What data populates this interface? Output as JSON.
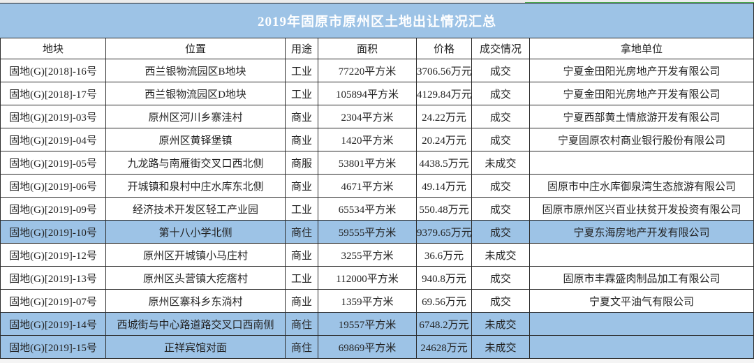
{
  "title": "2019年固原市原州区土地出让情况汇总",
  "headers": [
    "地块",
    "位置",
    "用途",
    "面积",
    "价格",
    "成交情况",
    "拿地单位"
  ],
  "highlight_color": "#9dc3e6",
  "rows": [
    {
      "parcel": "固地(G)[2018]-16号",
      "location": "西兰银物流园区B地块",
      "use": "工业",
      "area": "77220平方米",
      "price": "3706.56万元",
      "status": "成交",
      "buyer": "宁夏金田阳光房地产开发有限公司",
      "highlighted": false
    },
    {
      "parcel": "固地(G)[2018]-17号",
      "location": "西兰银物流园区D地块",
      "use": "工业",
      "area": "105894平方米",
      "price": "4129.84万元",
      "status": "成交",
      "buyer": "宁夏金田阳光房地产开发有限公司",
      "highlighted": false
    },
    {
      "parcel": "固地(G)[2019]-03号",
      "location": "原州区河川乡寨洼村",
      "use": "商业",
      "area": "2304平方米",
      "price": "24.22万元",
      "status": "成交",
      "buyer": "宁夏西部黄土情旅游开发有限公司",
      "highlighted": false
    },
    {
      "parcel": "固地(G)[2019]-04号",
      "location": "原州区黄铎堡镇",
      "use": "商业",
      "area": "1420平方米",
      "price": "20.24万元",
      "status": "成交",
      "buyer": "宁夏固原农村商业银行股份有限公司",
      "highlighted": false
    },
    {
      "parcel": "固地(G)[2019]-05号",
      "location": "九龙路与南雁街交叉口西北侧",
      "use": "商服",
      "area": "53801平方米",
      "price": "4438.5万元",
      "status": "未成交",
      "buyer": "",
      "highlighted": false
    },
    {
      "parcel": "固地(G)[2019]-06号",
      "location": "开城镇和泉村中庄水库东北侧",
      "use": "商业",
      "area": "4671平方米",
      "price": "49.14万元",
      "status": "成交",
      "buyer": "固原市中庄水库御泉湾生态旅游有限公司",
      "highlighted": false
    },
    {
      "parcel": "固地(G)[2019]-09号",
      "location": "经济技术开发区轻工产业园",
      "use": "工业",
      "area": "65534平方米",
      "price": "550.48万元",
      "status": "成交",
      "buyer": "固原市原州区兴百业扶贫开发投资有限公司",
      "highlighted": false
    },
    {
      "parcel": "固地(G)[2019]-10号",
      "location": "第十八小学北侧",
      "use": "商住",
      "area": "59555平方米",
      "price": "9379.65万元",
      "status": "成交",
      "buyer": "宁夏东海房地产开发有限公司",
      "highlighted": true
    },
    {
      "parcel": "固地(G)[2019]-12号",
      "location": "原州区开城镇小马庄村",
      "use": "商业",
      "area": "3255平方米",
      "price": "36.6万元",
      "status": "未成交",
      "buyer": "",
      "highlighted": false
    },
    {
      "parcel": "固地(G)[2019]-13号",
      "location": "原州区头营镇大疙瘩村",
      "use": "工业",
      "area": "112000平方米",
      "price": "940.8万元",
      "status": "成交",
      "buyer": "固原市丰霖盛肉制品加工有限公司",
      "highlighted": false
    },
    {
      "parcel": "固地(G)[2019]-07号",
      "location": "原州区寨科乡东淌村",
      "use": "商业",
      "area": "1359平方米",
      "price": "69.56万元",
      "status": "成交",
      "buyer": "宁夏文平油气有限公司",
      "highlighted": false
    },
    {
      "parcel": "固地(G)[2019]-14号",
      "location": "西城街与中心路道路交叉口西南侧",
      "use": "商住",
      "area": "19557平方米",
      "price": "6748.2万元",
      "status": "未成交",
      "buyer": "",
      "highlighted": true
    },
    {
      "parcel": "固地(G)[2019]-15号",
      "location": "正祥宾馆对面",
      "use": "商住",
      "area": "69869平方米",
      "price": "24628万元",
      "status": "未成交",
      "buyer": "",
      "highlighted": true
    }
  ]
}
